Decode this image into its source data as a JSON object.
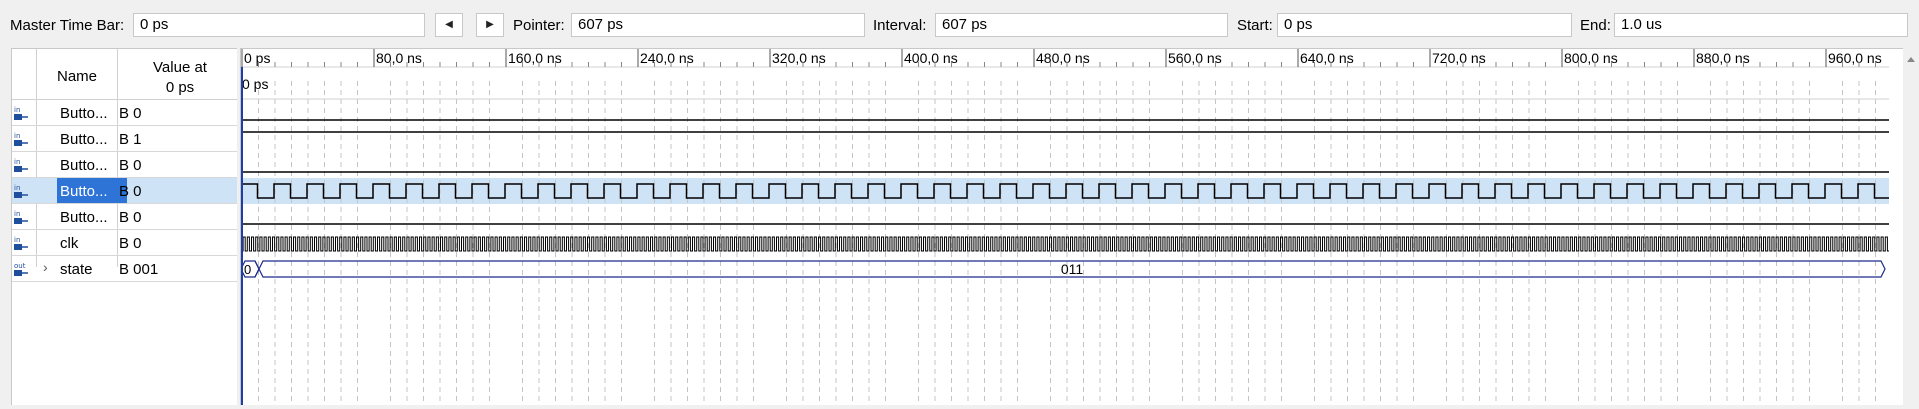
{
  "toolbar": {
    "master_label": "Master Time Bar:",
    "master_value": "0 ps",
    "prev_icon": "caret-left-icon",
    "next_icon": "caret-right-icon",
    "pointer_label": "Pointer:",
    "pointer_value": "607 ps",
    "interval_label": "Interval:",
    "interval_value": "607 ps",
    "start_label": "Start:",
    "start_value": "0 ps",
    "end_label": "End:",
    "end_value": "1.0 us"
  },
  "signals": {
    "name_header": "Name",
    "value_header_line1": "Value at",
    "value_header_line2": "0 ps",
    "rows": [
      {
        "dir": "in",
        "name": "Butto...",
        "value": "B 0"
      },
      {
        "dir": "in",
        "name": "Butto...",
        "value": "B 1"
      },
      {
        "dir": "in",
        "name": "Butto...",
        "value": "B 0"
      },
      {
        "dir": "in",
        "name": "Butto...",
        "value": "B 0"
      },
      {
        "dir": "in",
        "name": "Butto...",
        "value": "B 0"
      },
      {
        "dir": "in",
        "name": "clk",
        "value": "B 0"
      },
      {
        "dir": "out",
        "name": "state",
        "value": "B 001"
      }
    ]
  },
  "timeline": {
    "ticks": [
      "0 ps",
      "80,0 ns",
      "160,0 ns",
      "240,0 ns",
      "320,0 ns",
      "400,0 ns",
      "480,0 ns",
      "560,0 ns",
      "640,0 ns",
      "720,0 ns",
      "800,0 ns",
      "880,0 ns",
      "960,0 ns"
    ],
    "cursor_label": "0 ps",
    "state_bus": [
      "0",
      "011"
    ]
  },
  "colors": {
    "selection": "#cfe3f7",
    "selection_name": "#2e73d6",
    "bus": "#1a2a8a",
    "wave": "#000000"
  }
}
